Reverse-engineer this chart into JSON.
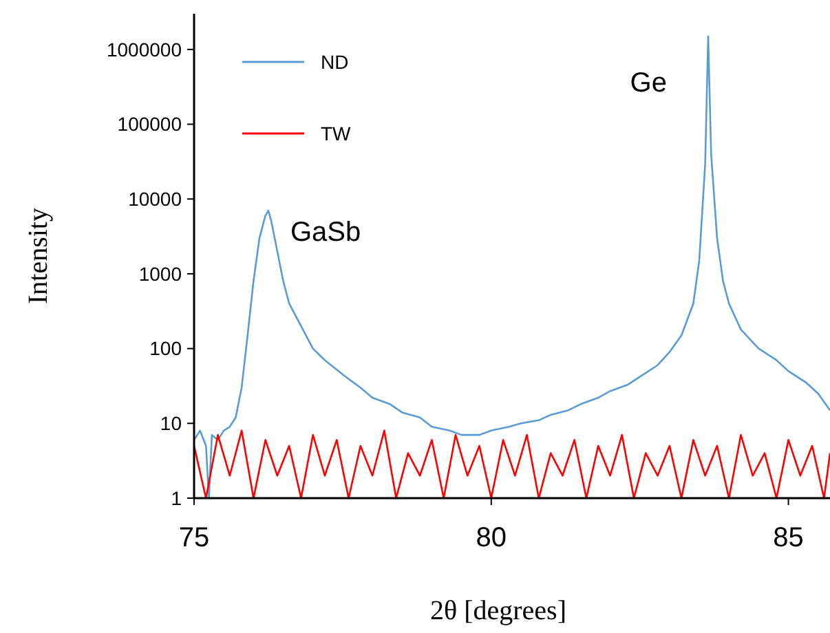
{
  "chart_data": {
    "type": "line",
    "xlabel": "2θ [degrees]",
    "ylabel": "Intensity",
    "log": "y",
    "xlim": [
      75,
      85.7
    ],
    "ylim": [
      1,
      3000000
    ],
    "xticks": [
      75,
      80,
      85
    ],
    "yticks": [
      1,
      10,
      100,
      1000,
      10000,
      100000,
      1000000
    ],
    "legend": "top left",
    "grid": false,
    "marker": "none",
    "line_style": "solid",
    "annotations": [
      {
        "text": "GaSb",
        "x": 76.25,
        "y": 7000
      },
      {
        "text": "Ge",
        "x": 83.65,
        "y": 1500000
      }
    ],
    "series": [
      {
        "name": "ND",
        "color": "#5b9bd5",
        "x": [
          75,
          75.1,
          75.2,
          75.25,
          75.3,
          75.4,
          75.5,
          75.6,
          75.7,
          75.8,
          75.9,
          76,
          76.1,
          76.2,
          76.25,
          76.3,
          76.4,
          76.5,
          76.6,
          76.8,
          77,
          77.2,
          77.5,
          77.8,
          78,
          78.3,
          78.5,
          78.8,
          79,
          79.3,
          79.5,
          79.8,
          80,
          80.3,
          80.5,
          80.8,
          81,
          81.3,
          81.5,
          81.8,
          82,
          82.3,
          82.5,
          82.8,
          83,
          83.2,
          83.4,
          83.5,
          83.6,
          83.65,
          83.7,
          83.8,
          83.9,
          84,
          84.2,
          84.5,
          84.8,
          85,
          85.3,
          85.5,
          85.7
        ],
        "values": [
          6,
          8,
          5,
          1,
          7,
          6,
          8,
          9,
          12,
          30,
          150,
          800,
          3000,
          6000,
          7000,
          5000,
          2000,
          800,
          400,
          200,
          100,
          70,
          45,
          30,
          22,
          18,
          14,
          12,
          9,
          8,
          7,
          7,
          8,
          9,
          10,
          11,
          13,
          15,
          18,
          22,
          27,
          33,
          42,
          60,
          90,
          150,
          400,
          1500,
          30000,
          1500000,
          40000,
          3000,
          800,
          400,
          180,
          100,
          70,
          50,
          35,
          25,
          15
        ]
      },
      {
        "name": "TW",
        "color": "#ff0000",
        "x": [
          75,
          75.2,
          75.4,
          75.6,
          75.8,
          76,
          76.2,
          76.4,
          76.6,
          76.8,
          77,
          77.2,
          77.4,
          77.6,
          77.8,
          78,
          78.2,
          78.4,
          78.6,
          78.8,
          79,
          79.2,
          79.4,
          79.6,
          79.8,
          80,
          80.2,
          80.4,
          80.6,
          80.8,
          81,
          81.2,
          81.4,
          81.6,
          81.8,
          82,
          82.2,
          82.4,
          82.6,
          82.8,
          83,
          83.2,
          83.4,
          83.6,
          83.8,
          84,
          84.2,
          84.4,
          84.6,
          84.8,
          85,
          85.2,
          85.4,
          85.6,
          85.7
        ],
        "values": [
          5,
          1,
          7,
          2,
          8,
          1,
          6,
          2,
          5,
          1,
          7,
          2,
          6,
          1,
          5,
          2,
          8,
          1,
          4,
          2,
          6,
          1,
          7,
          2,
          5,
          1,
          6,
          2,
          7,
          1,
          4,
          2,
          6,
          1,
          5,
          2,
          7,
          1,
          4,
          2,
          5,
          1,
          6,
          2,
          5,
          1,
          7,
          2,
          4,
          1,
          6,
          2,
          5,
          1,
          4
        ]
      }
    ]
  }
}
